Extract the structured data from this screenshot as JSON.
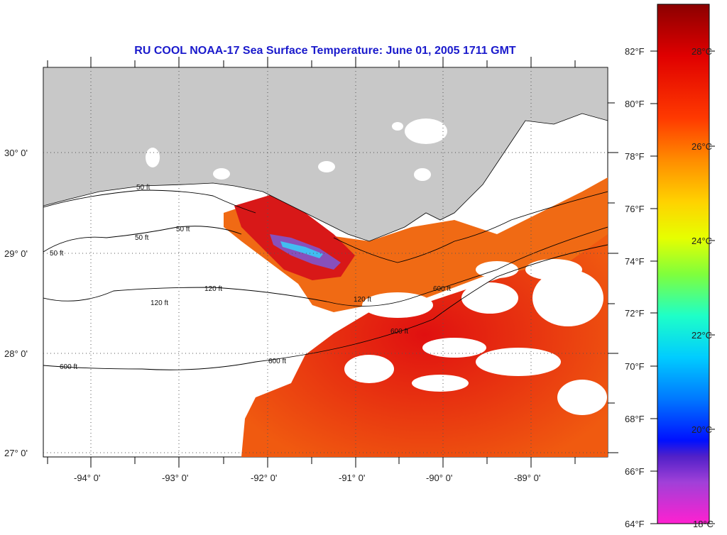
{
  "title": "RU COOL  NOAA-17  Sea Surface Temperature:  June 01, 2005 1711 GMT",
  "lat_labels": [
    "30° 0'",
    "29° 0'",
    "28° 0'",
    "27° 0'"
  ],
  "lon_labels": [
    "-94° 0'",
    "-93° 0'",
    "-92° 0'",
    "-91° 0'",
    "-90° 0'",
    "-89° 0'"
  ],
  "contour_labels": [
    "50 ft",
    "50 ft",
    "50 ft",
    "50 ft",
    "120 ft",
    "120 ft",
    "120 ft",
    "600 ft",
    "600 ft",
    "600 ft",
    "600 ft"
  ],
  "colorbar": {
    "fahrenheit": [
      "82°F",
      "80°F",
      "78°F",
      "76°F",
      "74°F",
      "72°F",
      "70°F",
      "68°F",
      "66°F",
      "64°F"
    ],
    "celsius": [
      "28°C",
      "26°C",
      "24°C",
      "22°C",
      "20°C",
      "18°C"
    ]
  },
  "colors": {
    "land": "#c8c8c8",
    "no_data": "#ffffff",
    "title": "#1a1acc"
  }
}
